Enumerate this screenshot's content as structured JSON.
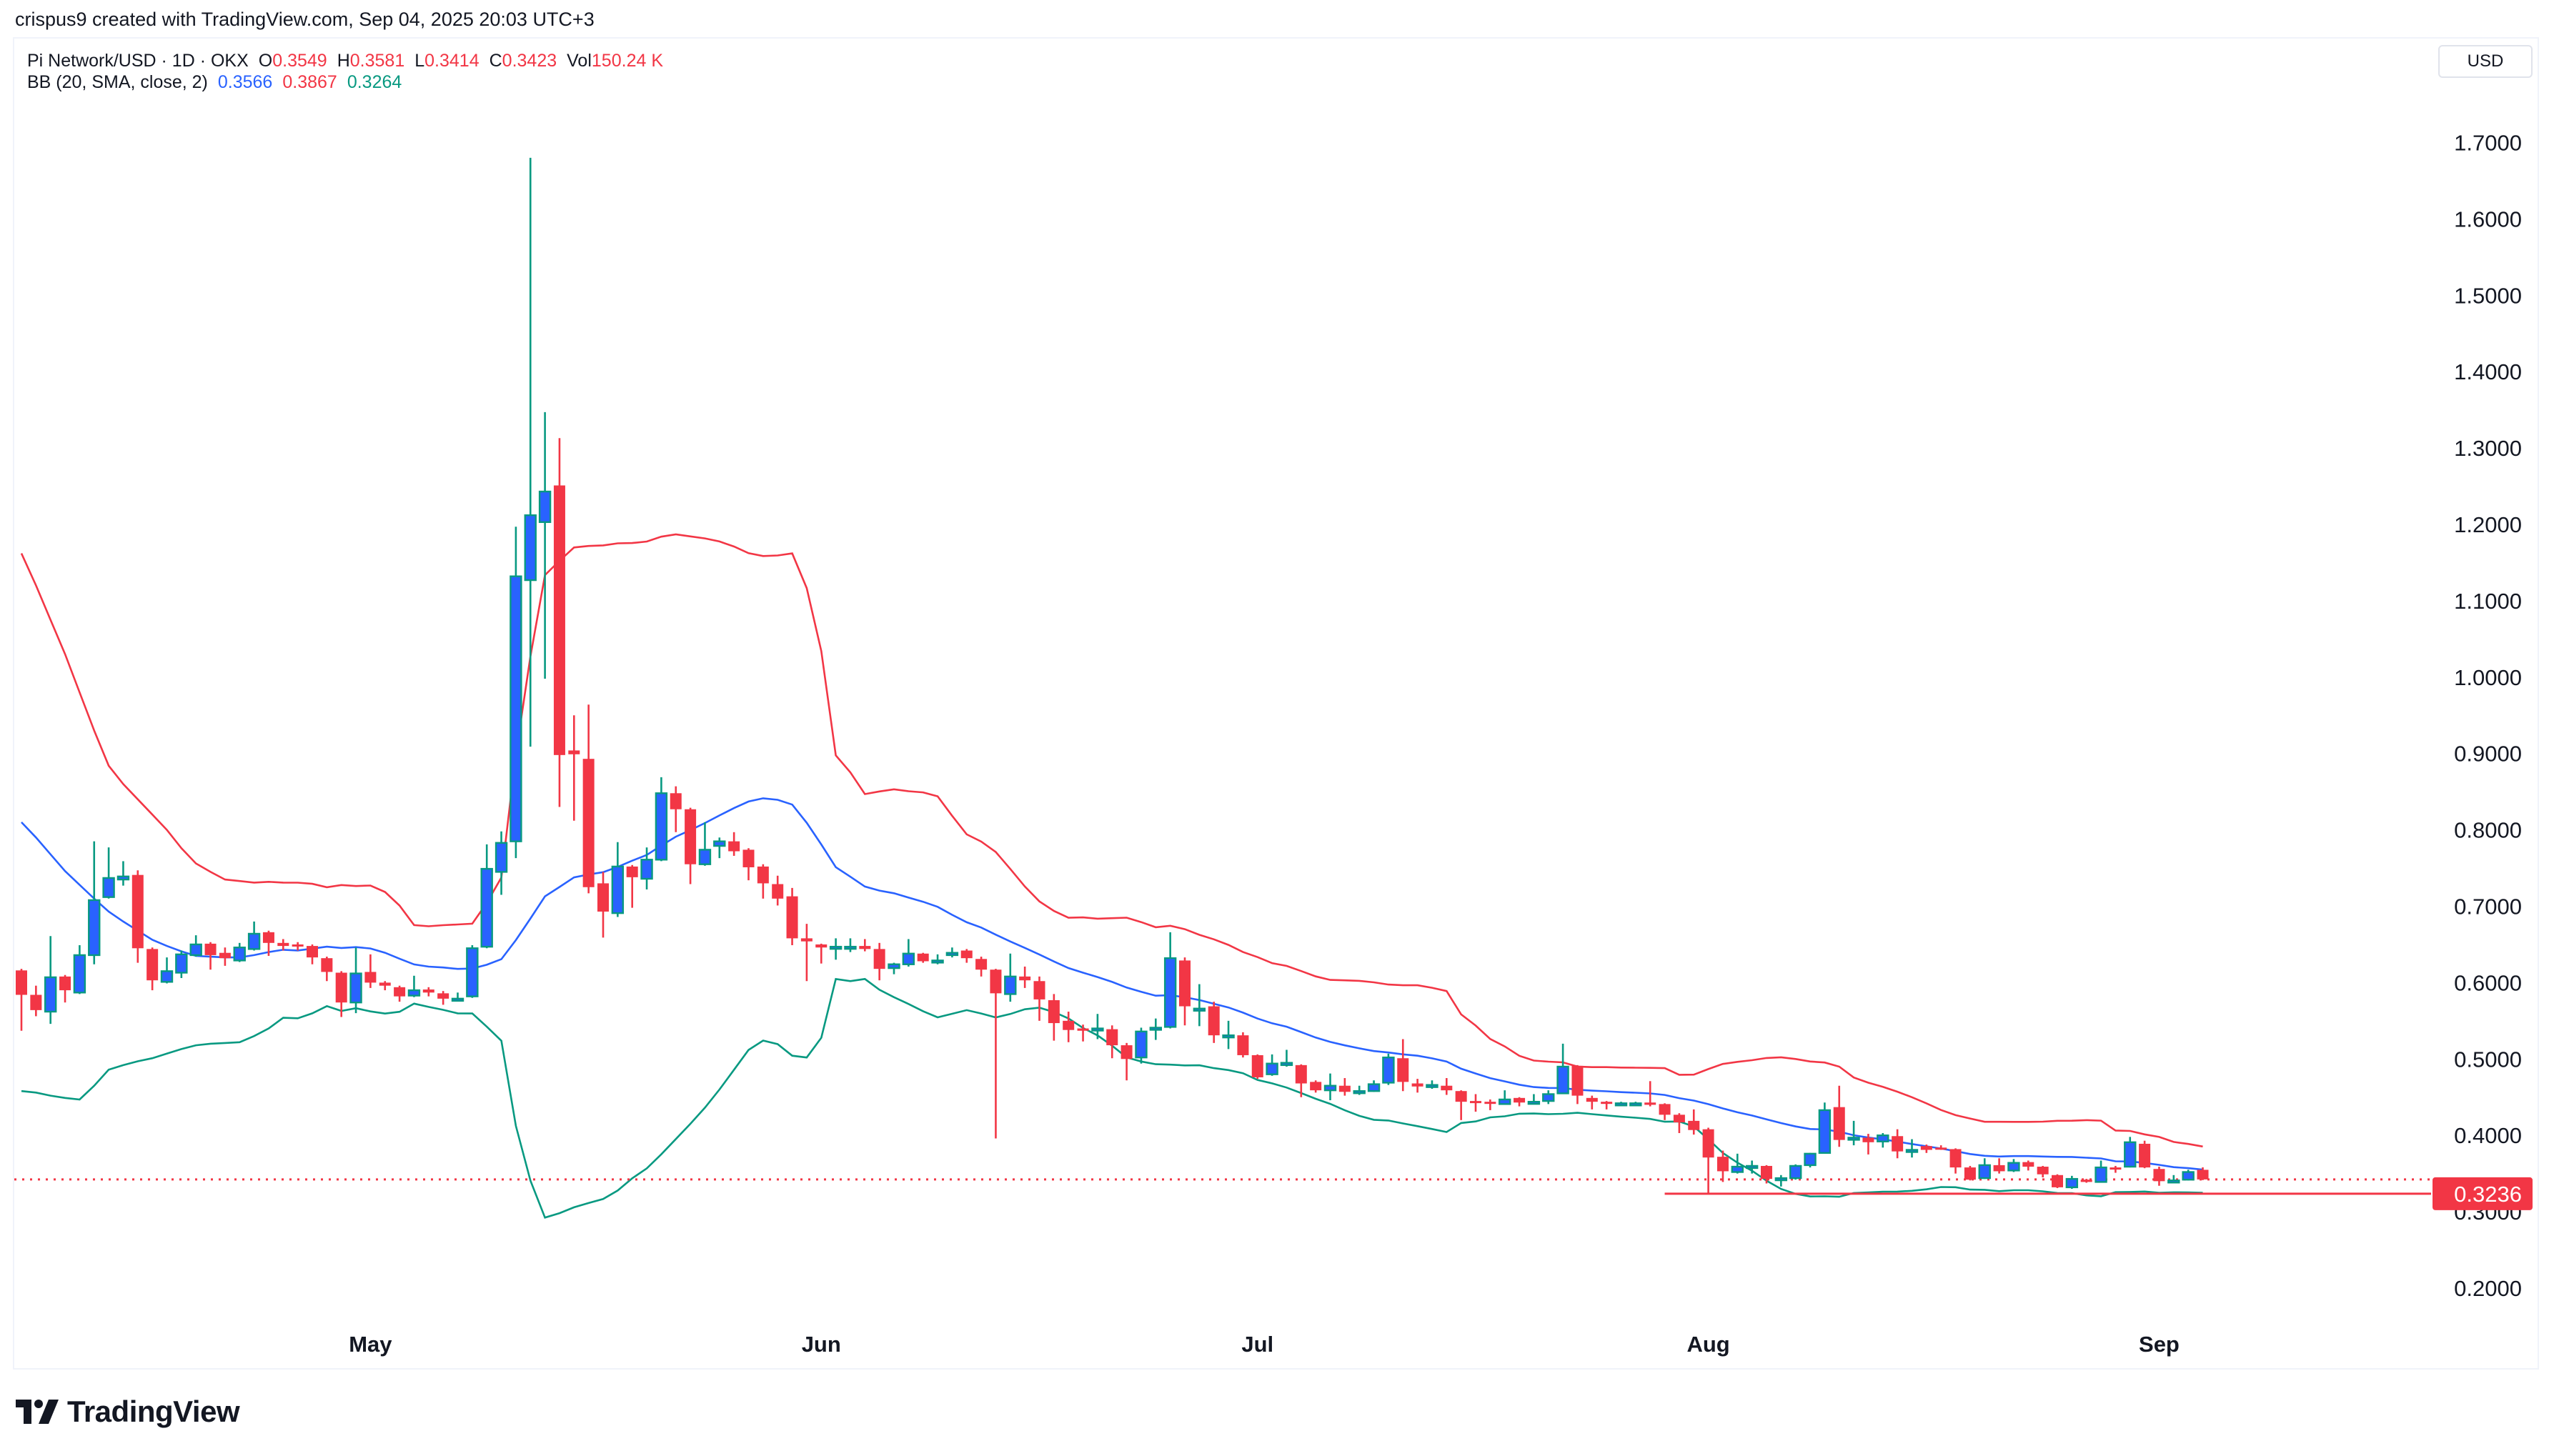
{
  "credit": "crispus9 created with TradingView.com, Sep 04, 2025 20:03 UTC+3",
  "legend": {
    "symbol": "Pi Network/USD · 1D · OKX",
    "o_label": "O",
    "o": "0.3549",
    "h_label": "H",
    "h": "0.3581",
    "l_label": "L",
    "l": "0.3414",
    "c_label": "C",
    "c": "0.3423",
    "vol_label": "Vol",
    "vol": "150.24 K",
    "bb_label": "BB (20, SMA, close, 2)",
    "bb_basis": "0.3566",
    "bb_upper": "0.3867",
    "bb_lower": "0.3264"
  },
  "currency": "USD",
  "price_label": "0.3236",
  "logo_text": "TradingView",
  "colors": {
    "up_fill": "#2962ff",
    "up_border": "#089981",
    "down": "#f23645",
    "bb_basis": "#2962ff",
    "bb_upper": "#f23645",
    "bb_lower": "#089981",
    "text": "#131722"
  },
  "chart_data": {
    "type": "candlestick",
    "title": "Pi Network/USD · 1D · OKX",
    "ylim": [
      0.15,
      1.75
    ],
    "y_ticks": [
      "0.2000",
      "0.3000",
      "0.4000",
      "0.5000",
      "0.6000",
      "0.7000",
      "0.8000",
      "0.9000",
      "1.0000",
      "1.1000",
      "1.2000",
      "1.3000",
      "1.4000",
      "1.5000",
      "1.6000",
      "1.7000"
    ],
    "x_ticks": [
      {
        "label": "May",
        "date": "2025-05-01"
      },
      {
        "label": "Jun",
        "date": "2025-06-01"
      },
      {
        "label": "Jul",
        "date": "2025-07-01"
      },
      {
        "label": "Aug",
        "date": "2025-08-01"
      },
      {
        "label": "Sep",
        "date": "2025-09-01"
      }
    ],
    "grid": false,
    "last_price_line": 0.3423,
    "horizontal_line": {
      "value": 0.3236,
      "from_date": "2025-07-29"
    },
    "indicator": {
      "name": "BB (20, SMA, close, 2)",
      "period": 20,
      "stddev": 2,
      "early_values": {
        "upper": [
          1.162,
          1.12,
          1.075,
          1.03,
          0.98,
          0.93,
          0.884,
          0.86,
          0.84,
          0.82,
          0.8,
          0.776,
          0.756,
          0.745,
          0.735,
          0.733,
          0.731,
          0.732,
          0.731
        ],
        "basis": [
          0.81,
          0.79,
          0.768,
          0.746,
          0.728,
          0.71,
          0.693,
          0.68,
          0.668,
          0.656,
          0.648,
          0.641,
          0.635,
          0.634,
          0.633,
          0.633,
          0.636,
          0.64,
          0.643
        ],
        "lower": [
          0.458,
          0.456,
          0.452,
          0.449,
          0.447,
          0.465,
          0.486,
          0.492,
          0.497,
          0.501,
          0.507,
          0.513,
          0.518,
          0.52,
          0.521,
          0.522,
          0.53,
          0.54,
          0.554
        ]
      }
    },
    "candle_fields": [
      "date",
      "open",
      "high",
      "low",
      "close"
    ],
    "candles": [
      [
        "2025-04-07",
        0.616,
        0.618,
        0.537,
        0.584
      ],
      [
        "2025-04-08",
        0.584,
        0.596,
        0.556,
        0.564
      ],
      [
        "2025-04-09",
        0.562,
        0.661,
        0.546,
        0.607
      ],
      [
        "2025-04-10",
        0.608,
        0.61,
        0.574,
        0.59
      ],
      [
        "2025-04-11",
        0.587,
        0.649,
        0.585,
        0.636
      ],
      [
        "2025-04-12",
        0.636,
        0.785,
        0.624,
        0.708
      ],
      [
        "2025-04-13",
        0.712,
        0.777,
        0.71,
        0.737
      ],
      [
        "2025-04-14",
        0.735,
        0.759,
        0.727,
        0.739
      ],
      [
        "2025-04-15",
        0.741,
        0.747,
        0.626,
        0.645
      ],
      [
        "2025-04-16",
        0.644,
        0.646,
        0.59,
        0.603
      ],
      [
        "2025-04-17",
        0.601,
        0.633,
        0.599,
        0.615
      ],
      [
        "2025-04-18",
        0.613,
        0.642,
        0.606,
        0.637
      ],
      [
        "2025-04-19",
        0.636,
        0.662,
        0.634,
        0.65
      ],
      [
        "2025-04-20",
        0.651,
        0.653,
        0.617,
        0.636
      ],
      [
        "2025-04-21",
        0.639,
        0.646,
        0.622,
        0.632
      ],
      [
        "2025-04-22",
        0.629,
        0.652,
        0.627,
        0.646
      ],
      [
        "2025-04-23",
        0.644,
        0.68,
        0.642,
        0.664
      ],
      [
        "2025-04-24",
        0.666,
        0.668,
        0.635,
        0.652
      ],
      [
        "2025-04-25",
        0.652,
        0.657,
        0.642,
        0.648
      ],
      [
        "2025-04-26",
        0.65,
        0.653,
        0.642,
        0.649
      ],
      [
        "2025-04-27",
        0.648,
        0.65,
        0.624,
        0.633
      ],
      [
        "2025-04-28",
        0.632,
        0.634,
        0.602,
        0.614
      ],
      [
        "2025-04-29",
        0.613,
        0.615,
        0.555,
        0.574
      ],
      [
        "2025-04-30",
        0.574,
        0.646,
        0.56,
        0.612
      ],
      [
        "2025-05-01",
        0.614,
        0.637,
        0.593,
        0.6
      ],
      [
        "2025-05-02",
        0.6,
        0.602,
        0.59,
        0.596
      ],
      [
        "2025-05-03",
        0.594,
        0.596,
        0.575,
        0.582
      ],
      [
        "2025-05-04",
        0.583,
        0.609,
        0.581,
        0.59
      ],
      [
        "2025-05-05",
        0.591,
        0.594,
        0.582,
        0.587
      ],
      [
        "2025-05-06",
        0.586,
        0.589,
        0.571,
        0.579
      ],
      [
        "2025-05-07",
        0.578,
        0.587,
        0.576,
        0.579
      ],
      [
        "2025-05-08",
        0.582,
        0.649,
        0.58,
        0.645
      ],
      [
        "2025-05-09",
        0.647,
        0.781,
        0.645,
        0.749
      ],
      [
        "2025-05-10",
        0.745,
        0.798,
        0.715,
        0.783
      ],
      [
        "2025-05-11",
        0.785,
        1.197,
        0.763,
        1.132
      ],
      [
        "2025-05-12",
        1.127,
        1.68,
        0.909,
        1.212
      ],
      [
        "2025-05-13",
        1.203,
        1.347,
        0.998,
        1.243
      ],
      [
        "2025-05-14",
        1.251,
        1.313,
        0.83,
        0.898
      ],
      [
        "2025-05-15",
        0.904,
        0.95,
        0.812,
        0.899
      ],
      [
        "2025-05-16",
        0.893,
        0.964,
        0.717,
        0.725
      ],
      [
        "2025-05-17",
        0.73,
        0.745,
        0.659,
        0.693
      ],
      [
        "2025-05-18",
        0.691,
        0.784,
        0.686,
        0.752
      ],
      [
        "2025-05-19",
        0.752,
        0.754,
        0.698,
        0.738
      ],
      [
        "2025-05-20",
        0.736,
        0.777,
        0.722,
        0.761
      ],
      [
        "2025-05-21",
        0.761,
        0.869,
        0.759,
        0.848
      ],
      [
        "2025-05-22",
        0.848,
        0.857,
        0.797,
        0.827
      ],
      [
        "2025-05-23",
        0.827,
        0.829,
        0.729,
        0.755
      ],
      [
        "2025-05-24",
        0.755,
        0.81,
        0.753,
        0.774
      ],
      [
        "2025-05-25",
        0.779,
        0.79,
        0.763,
        0.785
      ],
      [
        "2025-05-26",
        0.785,
        0.797,
        0.766,
        0.772
      ],
      [
        "2025-05-27",
        0.774,
        0.776,
        0.734,
        0.751
      ],
      [
        "2025-05-28",
        0.752,
        0.755,
        0.71,
        0.73
      ],
      [
        "2025-05-29",
        0.729,
        0.74,
        0.701,
        0.71
      ],
      [
        "2025-05-30",
        0.713,
        0.724,
        0.649,
        0.658
      ],
      [
        "2025-05-31",
        0.658,
        0.677,
        0.602,
        0.654
      ],
      [
        "2025-06-01",
        0.65,
        0.651,
        0.625,
        0.646
      ],
      [
        "2025-06-02",
        0.646,
        0.658,
        0.63,
        0.647
      ],
      [
        "2025-06-03",
        0.646,
        0.658,
        0.64,
        0.647
      ],
      [
        "2025-06-04",
        0.648,
        0.657,
        0.641,
        0.644
      ],
      [
        "2025-06-05",
        0.644,
        0.652,
        0.603,
        0.618
      ],
      [
        "2025-06-06",
        0.619,
        0.626,
        0.611,
        0.624
      ],
      [
        "2025-06-07",
        0.624,
        0.657,
        0.621,
        0.638
      ],
      [
        "2025-06-08",
        0.638,
        0.639,
        0.626,
        0.628
      ],
      [
        "2025-06-09",
        0.628,
        0.637,
        0.624,
        0.629
      ],
      [
        "2025-06-10",
        0.636,
        0.646,
        0.633,
        0.639
      ],
      [
        "2025-06-11",
        0.642,
        0.644,
        0.626,
        0.632
      ],
      [
        "2025-06-12",
        0.631,
        0.634,
        0.608,
        0.617
      ],
      [
        "2025-06-13",
        0.617,
        0.618,
        0.396,
        0.586
      ],
      [
        "2025-06-14",
        0.585,
        0.638,
        0.575,
        0.608
      ],
      [
        "2025-06-15",
        0.608,
        0.621,
        0.593,
        0.603
      ],
      [
        "2025-06-16",
        0.602,
        0.608,
        0.55,
        0.578
      ],
      [
        "2025-06-17",
        0.577,
        0.585,
        0.524,
        0.547
      ],
      [
        "2025-06-18",
        0.55,
        0.562,
        0.522,
        0.538
      ],
      [
        "2025-06-19",
        0.54,
        0.545,
        0.523,
        0.537
      ],
      [
        "2025-06-20",
        0.539,
        0.559,
        0.526,
        0.54
      ],
      [
        "2025-06-21",
        0.539,
        0.544,
        0.501,
        0.518
      ],
      [
        "2025-06-22",
        0.518,
        0.521,
        0.472,
        0.5
      ],
      [
        "2025-06-23",
        0.502,
        0.541,
        0.494,
        0.536
      ],
      [
        "2025-06-24",
        0.539,
        0.553,
        0.525,
        0.541
      ],
      [
        "2025-06-25",
        0.542,
        0.666,
        0.54,
        0.632
      ],
      [
        "2025-06-26",
        0.629,
        0.633,
        0.544,
        0.569
      ],
      [
        "2025-06-27",
        0.564,
        0.598,
        0.543,
        0.566
      ],
      [
        "2025-06-28",
        0.569,
        0.575,
        0.521,
        0.531
      ],
      [
        "2025-06-29",
        0.53,
        0.55,
        0.513,
        0.531
      ],
      [
        "2025-06-30",
        0.531,
        0.535,
        0.502,
        0.505
      ],
      [
        "2025-07-01",
        0.505,
        0.506,
        0.474,
        0.476
      ],
      [
        "2025-07-02",
        0.48,
        0.506,
        0.478,
        0.494
      ],
      [
        "2025-07-03",
        0.492,
        0.512,
        0.49,
        0.495
      ],
      [
        "2025-07-04",
        0.492,
        0.493,
        0.45,
        0.468
      ],
      [
        "2025-07-05",
        0.47,
        0.472,
        0.456,
        0.459
      ],
      [
        "2025-07-06",
        0.459,
        0.481,
        0.446,
        0.465
      ],
      [
        "2025-07-07",
        0.465,
        0.475,
        0.452,
        0.457
      ],
      [
        "2025-07-08",
        0.457,
        0.465,
        0.453,
        0.458
      ],
      [
        "2025-07-09",
        0.458,
        0.472,
        0.457,
        0.467
      ],
      [
        "2025-07-10",
        0.469,
        0.507,
        0.466,
        0.502
      ],
      [
        "2025-07-11",
        0.501,
        0.526,
        0.458,
        0.47
      ],
      [
        "2025-07-12",
        0.468,
        0.474,
        0.456,
        0.464
      ],
      [
        "2025-07-13",
        0.465,
        0.472,
        0.461,
        0.466
      ],
      [
        "2025-07-14",
        0.465,
        0.475,
        0.453,
        0.459
      ],
      [
        "2025-07-15",
        0.458,
        0.459,
        0.42,
        0.444
      ],
      [
        "2025-07-16",
        0.445,
        0.454,
        0.431,
        0.444
      ],
      [
        "2025-07-17",
        0.444,
        0.447,
        0.433,
        0.443
      ],
      [
        "2025-07-18",
        0.441,
        0.459,
        0.44,
        0.447
      ],
      [
        "2025-07-19",
        0.449,
        0.45,
        0.438,
        0.443
      ],
      [
        "2025-07-20",
        0.443,
        0.454,
        0.442,
        0.444
      ],
      [
        "2025-07-21",
        0.445,
        0.459,
        0.441,
        0.454
      ],
      [
        "2025-07-22",
        0.455,
        0.52,
        0.454,
        0.49
      ],
      [
        "2025-07-23",
        0.491,
        0.492,
        0.441,
        0.452
      ],
      [
        "2025-07-24",
        0.449,
        0.452,
        0.434,
        0.444
      ],
      [
        "2025-07-25",
        0.444,
        0.445,
        0.434,
        0.442
      ],
      [
        "2025-07-26",
        0.441,
        0.444,
        0.44,
        0.442
      ],
      [
        "2025-07-27",
        0.441,
        0.444,
        0.44,
        0.442
      ],
      [
        "2025-07-28",
        0.443,
        0.471,
        0.438,
        0.44
      ],
      [
        "2025-07-29",
        0.441,
        0.442,
        0.42,
        0.427
      ],
      [
        "2025-07-30",
        0.427,
        0.429,
        0.403,
        0.417
      ],
      [
        "2025-07-31",
        0.419,
        0.434,
        0.401,
        0.407
      ],
      [
        "2025-08-01",
        0.408,
        0.41,
        0.3236,
        0.371
      ],
      [
        "2025-08-02",
        0.372,
        0.38,
        0.339,
        0.353
      ],
      [
        "2025-08-03",
        0.352,
        0.376,
        0.35,
        0.359
      ],
      [
        "2025-08-04",
        0.359,
        0.367,
        0.35,
        0.36
      ],
      [
        "2025-08-05",
        0.36,
        0.361,
        0.337,
        0.343
      ],
      [
        "2025-08-06",
        0.343,
        0.348,
        0.333,
        0.344
      ],
      [
        "2025-08-07",
        0.344,
        0.362,
        0.342,
        0.36
      ],
      [
        "2025-08-08",
        0.361,
        0.377,
        0.358,
        0.376
      ],
      [
        "2025-08-09",
        0.377,
        0.443,
        0.376,
        0.433
      ],
      [
        "2025-08-10",
        0.437,
        0.465,
        0.385,
        0.394
      ],
      [
        "2025-08-11",
        0.396,
        0.419,
        0.387,
        0.397
      ],
      [
        "2025-08-12",
        0.397,
        0.402,
        0.375,
        0.391
      ],
      [
        "2025-08-13",
        0.392,
        0.403,
        0.384,
        0.4
      ],
      [
        "2025-08-14",
        0.399,
        0.408,
        0.37,
        0.379
      ],
      [
        "2025-08-15",
        0.38,
        0.395,
        0.371,
        0.381
      ],
      [
        "2025-08-16",
        0.386,
        0.388,
        0.377,
        0.381
      ],
      [
        "2025-08-17",
        0.384,
        0.387,
        0.381,
        0.382
      ],
      [
        "2025-08-18",
        0.382,
        0.383,
        0.35,
        0.358
      ],
      [
        "2025-08-19",
        0.358,
        0.36,
        0.341,
        0.342
      ],
      [
        "2025-08-20",
        0.344,
        0.37,
        0.343,
        0.361
      ],
      [
        "2025-08-21",
        0.361,
        0.37,
        0.35,
        0.353
      ],
      [
        "2025-08-22",
        0.354,
        0.369,
        0.352,
        0.364
      ],
      [
        "2025-08-23",
        0.365,
        0.367,
        0.354,
        0.359
      ],
      [
        "2025-08-24",
        0.359,
        0.36,
        0.345,
        0.349
      ],
      [
        "2025-08-25",
        0.348,
        0.349,
        0.331,
        0.332
      ],
      [
        "2025-08-26",
        0.332,
        0.347,
        0.33,
        0.343
      ],
      [
        "2025-08-27",
        0.342,
        0.343,
        0.338,
        0.339
      ],
      [
        "2025-08-28",
        0.339,
        0.367,
        0.338,
        0.358
      ],
      [
        "2025-08-29",
        0.358,
        0.36,
        0.351,
        0.357
      ],
      [
        "2025-08-30",
        0.359,
        0.398,
        0.358,
        0.391
      ],
      [
        "2025-08-31",
        0.389,
        0.393,
        0.357,
        0.358
      ],
      [
        "2025-09-01",
        0.356,
        0.359,
        0.334,
        0.34
      ],
      [
        "2025-09-02",
        0.341,
        0.348,
        0.339,
        0.341
      ],
      [
        "2025-09-03",
        0.342,
        0.355,
        0.341,
        0.352
      ],
      [
        "2025-09-04",
        0.3549,
        0.3581,
        0.3414,
        0.3423
      ]
    ]
  }
}
